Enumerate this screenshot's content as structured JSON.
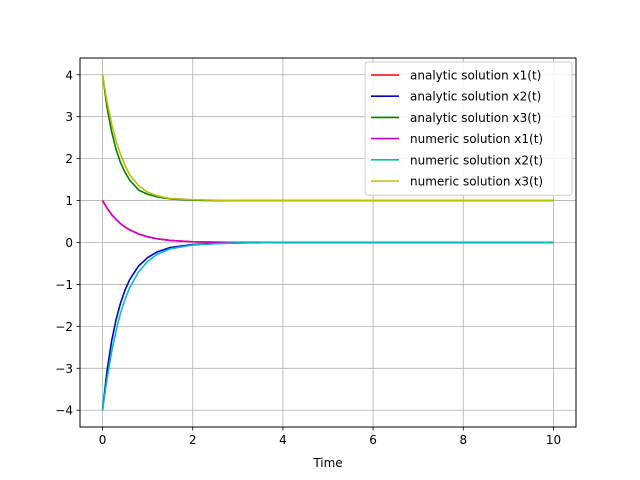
{
  "chart_data": {
    "type": "line",
    "title": "",
    "xlabel": "Time",
    "ylabel": "",
    "xlim": [
      -0.5,
      10.5
    ],
    "ylim": [
      -4.4,
      4.4
    ],
    "xticks": [
      "0",
      "2",
      "4",
      "6",
      "8",
      "10"
    ],
    "yticks": [
      "4",
      "3",
      "2",
      "1",
      "0",
      "−1",
      "−2",
      "−3",
      "−4"
    ],
    "grid": true,
    "legend_position": "top-right",
    "x": [
      0,
      0.1,
      0.2,
      0.3,
      0.4,
      0.5,
      0.6,
      0.8,
      1.0,
      1.2,
      1.5,
      2.0,
      2.5,
      3,
      4,
      5,
      6,
      7,
      8,
      9,
      10
    ],
    "series": [
      {
        "name": "analytic solution x1(t)",
        "color": "#ff0000",
        "values": [
          1.0,
          0.819,
          0.67,
          0.549,
          0.449,
          0.368,
          0.301,
          0.202,
          0.135,
          0.091,
          0.05,
          0.018,
          0.007,
          0.002,
          0.0,
          0.0,
          0.0,
          0.0,
          0.0,
          0.0,
          0.0
        ]
      },
      {
        "name": "analytic solution x2(t)",
        "color": "#0000cc",
        "values": [
          -4.0,
          -3.06,
          -2.36,
          -1.84,
          -1.44,
          -1.13,
          -0.89,
          -0.56,
          -0.36,
          -0.23,
          -0.12,
          -0.05,
          -0.02,
          -0.01,
          0.0,
          0.0,
          0.0,
          0.0,
          0.0,
          0.0,
          0.0
        ]
      },
      {
        "name": "analytic solution x3(t)",
        "color": "#008000",
        "values": [
          4.0,
          3.22,
          2.65,
          2.22,
          1.9,
          1.67,
          1.49,
          1.25,
          1.15,
          1.09,
          1.04,
          1.01,
          1.0,
          1.0,
          1.0,
          1.0,
          1.0,
          1.0,
          1.0,
          1.0,
          1.0
        ]
      },
      {
        "name": "numeric solution x1(t)",
        "color": "#cc00cc",
        "values": [
          1.0,
          0.82,
          0.671,
          0.55,
          0.45,
          0.369,
          0.302,
          0.203,
          0.136,
          0.091,
          0.05,
          0.018,
          0.007,
          0.002,
          0.0,
          0.0,
          0.0,
          0.0,
          0.0,
          0.0,
          0.0
        ]
      },
      {
        "name": "numeric solution x2(t)",
        "color": "#00bfbf",
        "values": [
          -4.0,
          -3.25,
          -2.62,
          -2.1,
          -1.68,
          -1.35,
          -1.08,
          -0.7,
          -0.45,
          -0.29,
          -0.15,
          -0.06,
          -0.03,
          -0.01,
          0.0,
          0.0,
          0.0,
          0.0,
          0.0,
          0.0,
          0.0
        ]
      },
      {
        "name": "numeric solution x3(t)",
        "color": "#bfbf00",
        "values": [
          4.0,
          3.36,
          2.84,
          2.42,
          2.1,
          1.84,
          1.62,
          1.36,
          1.2,
          1.12,
          1.05,
          1.02,
          1.01,
          1.0,
          1.0,
          1.0,
          1.0,
          1.0,
          1.0,
          1.0,
          1.0
        ]
      }
    ]
  }
}
